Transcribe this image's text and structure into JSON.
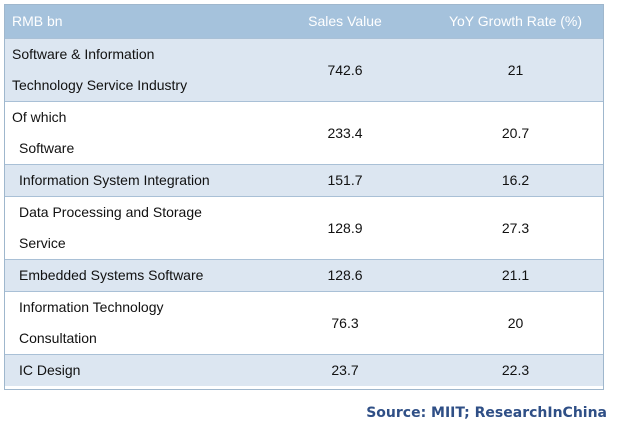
{
  "chart_data": {
    "type": "table",
    "columns": [
      "RMB bn",
      "Sales Value",
      "YoY Growth Rate (%)"
    ],
    "rows": [
      {
        "label_lines": [
          "Software & Information",
          "Technology Service Industry"
        ],
        "sales": "742.6",
        "growth": "21",
        "indent": 0
      },
      {
        "label_lines": [
          "Of which",
          "Software"
        ],
        "sales": "233.4",
        "growth": "20.7",
        "indent": 0
      },
      {
        "label_lines": [
          "Information System Integration"
        ],
        "sales": "151.7",
        "growth": "16.2",
        "indent": 1
      },
      {
        "label_lines": [
          "Data Processing and Storage",
          "Service"
        ],
        "sales": "128.9",
        "growth": "27.3",
        "indent": 1
      },
      {
        "label_lines": [
          "Embedded Systems Software"
        ],
        "sales": "128.6",
        "growth": "21.1",
        "indent": 1
      },
      {
        "label_lines": [
          "Information Technology",
          "Consultation"
        ],
        "sales": "76.3",
        "growth": "20",
        "indent": 1
      },
      {
        "label_lines": [
          "IC Design"
        ],
        "sales": "23.7",
        "growth": "22.3",
        "indent": 1
      }
    ]
  },
  "source": "Source: MIIT; ResearchInChina",
  "colors": {
    "header_bg": "#a5c2dc",
    "shaded_row_bg": "#dce6f1",
    "source_text": "#2f4f86"
  }
}
